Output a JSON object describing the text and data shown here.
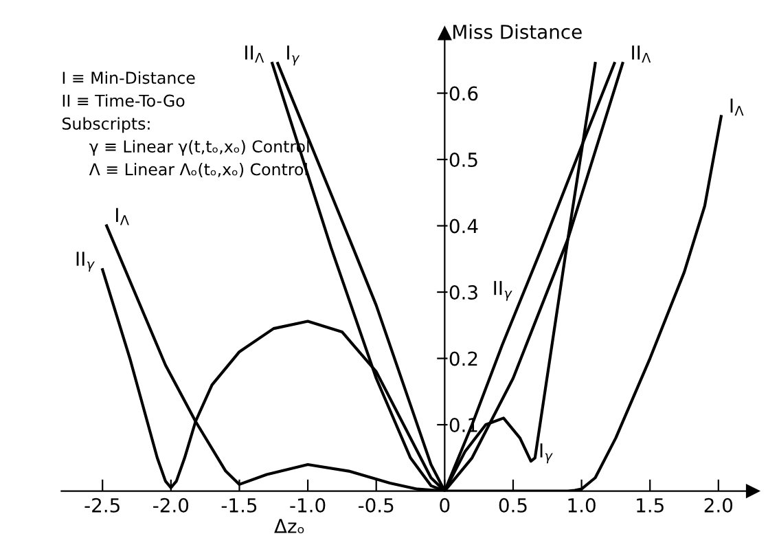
{
  "chart_data": {
    "type": "line",
    "xlabel": "Δzₒ",
    "ylabel": "Miss Distance",
    "xlim": [
      -2.8,
      2.25
    ],
    "ylim": [
      0,
      0.69
    ],
    "xticks": [
      -2.5,
      {
        "value": -2.0,
        "label": "-2.0"
      },
      -1.5,
      {
        "value": -1.0,
        "label": "-1.0"
      },
      -0.5,
      0,
      0.5,
      {
        "value": 1.0,
        "label": "1.0"
      },
      1.5,
      {
        "value": 2.0,
        "label": "2.0"
      }
    ],
    "yticks": [
      0.1,
      0.2,
      0.3,
      0.4,
      0.5,
      0.6
    ],
    "grid": false,
    "legend": false,
    "marker": "none",
    "line_style": "solid",
    "series": [
      {
        "color": "#000000",
        "x": [
          -2.5,
          -2.3,
          -2.1,
          -2.04,
          -2.0,
          -1.96,
          -1.9,
          -1.82,
          -1.7,
          -1.5,
          -1.25,
          -1.0,
          -0.75,
          -0.5,
          -0.3,
          -0.1,
          0,
          0.2,
          0.42,
          0.71,
          1.0,
          1.24
        ],
        "values": [
          0.334,
          0.2,
          0.05,
          0.015,
          0.005,
          0.015,
          0.05,
          0.105,
          0.16,
          0.21,
          0.245,
          0.256,
          0.24,
          0.18,
          0.1,
          0.02,
          0,
          0.1,
          0.22,
          0.367,
          0.52,
          0.645
        ]
      },
      {
        "color": "#000000",
        "x": [
          -2.47,
          -2.04,
          -1.82,
          -1.6,
          -1.5,
          -1.3,
          -1.0,
          -0.7,
          -0.4,
          -0.2,
          0,
          0.5,
          0.9,
          0.95,
          1.0,
          1.1,
          1.25,
          1.5,
          1.75,
          1.9,
          2.02
        ],
        "values": [
          0.4,
          0.19,
          0.105,
          0.03,
          0.01,
          0.025,
          0.04,
          0.03,
          0.012,
          0.003,
          0,
          0,
          0,
          0.001,
          0.003,
          0.02,
          0.08,
          0.2,
          0.33,
          0.43,
          0.565
        ]
      },
      {
        "color": "#000000",
        "x": [
          -1.26,
          -0.83,
          -0.5,
          -0.25,
          -0.1,
          0,
          0.2,
          0.5,
          0.9,
          1.3
        ],
        "values": [
          0.645,
          0.367,
          0.17,
          0.05,
          0.008,
          0,
          0.05,
          0.17,
          0.38,
          0.645
        ]
      },
      {
        "color": "#000000",
        "x": [
          -1.22,
          -0.67,
          -0.5,
          -0.25,
          -0.1,
          0,
          0.15,
          0.3,
          0.43,
          0.55,
          0.63,
          0.66,
          0.9,
          1.1
        ],
        "values": [
          0.645,
          0.367,
          0.28,
          0.13,
          0.04,
          0,
          0.06,
          0.1,
          0.11,
          0.08,
          0.045,
          0.05,
          0.38,
          0.645
        ]
      }
    ],
    "annotations": [
      {
        "text": "II$_{γ}$",
        "x": -2.5,
        "y": 0.334
      },
      {
        "text": "I$_{Λ}$",
        "x": -2.47,
        "y": 0.4
      },
      {
        "text": "II$_{Λ}$",
        "x": -1.26,
        "y": 0.645
      },
      {
        "text": "I$_{γ}$",
        "x": -1.22,
        "y": 0.645
      },
      {
        "text": "II$_{γ}$",
        "x": 0.55,
        "y": 0.29
      },
      {
        "text": "I$_{γ}$",
        "x": 0.63,
        "y": 0.045
      },
      {
        "text": "II$_{Λ}$",
        "x": 1.3,
        "y": 0.645
      },
      {
        "text": "I$_{Λ}$",
        "x": 2.02,
        "y": 0.565
      },
      "I ≡ Min-Distance",
      "II ≡ Time-To-Go",
      "Subscripts:",
      "γ ≡ Linear γ(t,tₒ,xₒ) Control",
      "Λ ≡ Linear Λₒ(tₒ,xₒ) Control"
    ]
  }
}
